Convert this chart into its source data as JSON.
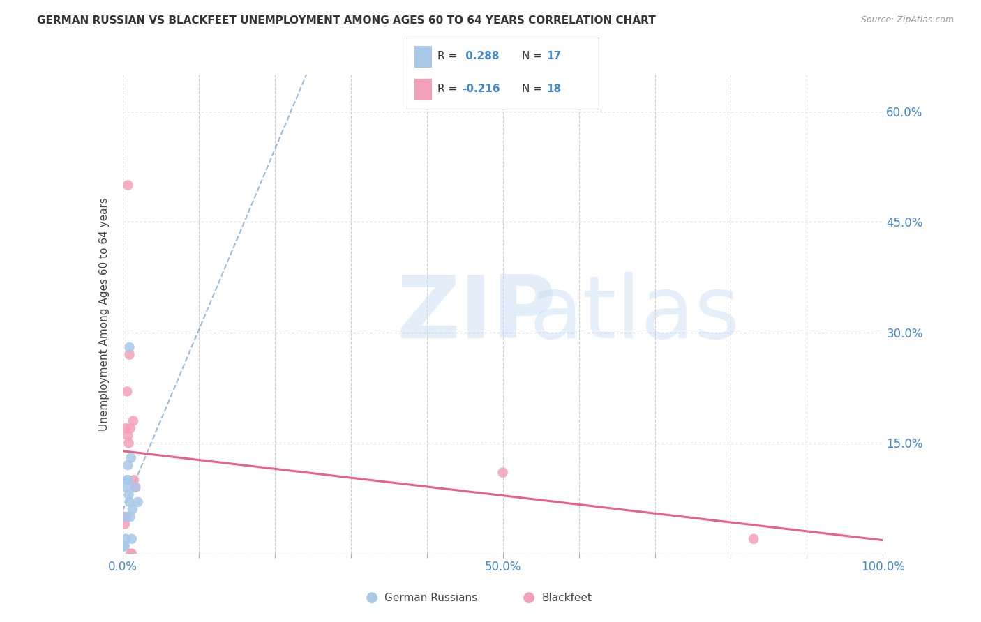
{
  "title": "GERMAN RUSSIAN VS BLACKFEET UNEMPLOYMENT AMONG AGES 60 TO 64 YEARS CORRELATION CHART",
  "source": "Source: ZipAtlas.com",
  "ylabel": "Unemployment Among Ages 60 to 64 years",
  "xlim": [
    0.0,
    1.0
  ],
  "ylim": [
    0.0,
    0.65
  ],
  "xtick_positions": [
    0.0,
    0.1,
    0.2,
    0.3,
    0.4,
    0.5,
    0.6,
    0.7,
    0.8,
    0.9,
    1.0
  ],
  "xticklabels": [
    "0.0%",
    "",
    "",
    "",
    "",
    "50.0%",
    "",
    "",
    "",
    "",
    "100.0%"
  ],
  "ytick_positions": [
    0.0,
    0.15,
    0.3,
    0.45,
    0.6
  ],
  "yticklabels": [
    "",
    "15.0%",
    "30.0%",
    "45.0%",
    "60.0%"
  ],
  "grid_color": "#cccccc",
  "background_color": "#ffffff",
  "german_russian_color": "#a8c8e8",
  "blackfeet_color": "#f4a0b8",
  "gr_line_color": "#6699cc",
  "bf_line_color": "#e8507a",
  "marker_size": 110,
  "R_gr": 0.288,
  "N_gr": 17,
  "R_bf": -0.216,
  "N_bf": 18,
  "gr_x": [
    0.002,
    0.003,
    0.004,
    0.005,
    0.005,
    0.006,
    0.007,
    0.007,
    0.008,
    0.009,
    0.009,
    0.01,
    0.011,
    0.012,
    0.013,
    0.016,
    0.02
  ],
  "gr_y": [
    0.01,
    0.01,
    0.02,
    0.05,
    0.09,
    0.1,
    0.1,
    0.12,
    0.08,
    0.07,
    0.28,
    0.05,
    0.13,
    0.02,
    0.06,
    0.09,
    0.07
  ],
  "bf_x": [
    0.001,
    0.002,
    0.003,
    0.004,
    0.005,
    0.006,
    0.007,
    0.007,
    0.008,
    0.009,
    0.01,
    0.011,
    0.012,
    0.014,
    0.015,
    0.017,
    0.5,
    0.83
  ],
  "bf_y": [
    0.05,
    0.05,
    0.04,
    0.17,
    0.05,
    0.22,
    0.16,
    0.5,
    0.15,
    0.27,
    0.17,
    0.0,
    0.0,
    0.18,
    0.1,
    0.09,
    0.11,
    0.02
  ],
  "title_fontsize": 11,
  "source_fontsize": 9,
  "tick_fontsize": 12,
  "ylabel_fontsize": 11,
  "legend_fontsize": 11,
  "legend_color_fontsize": 11
}
